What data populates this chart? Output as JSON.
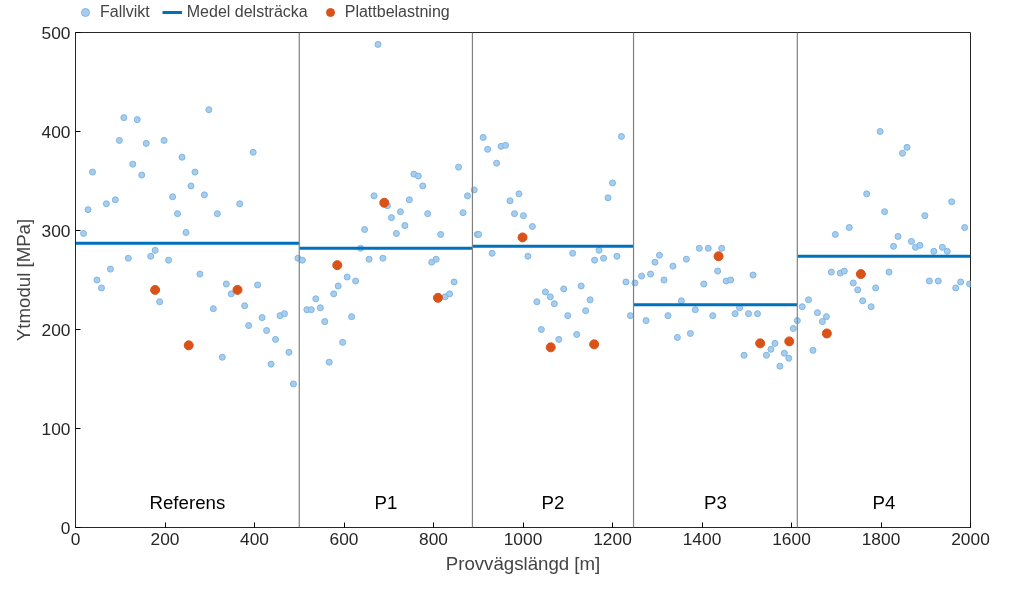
{
  "chart_data": {
    "type": "scatter",
    "xlabel": "Provvägslängd [m]",
    "ylabel": "Ytmodul [MPa]",
    "xlim": [
      0,
      2000
    ],
    "xticks": [
      0,
      200,
      400,
      600,
      800,
      1000,
      1200,
      1400,
      1600,
      1800,
      2000
    ],
    "ylim": [
      0,
      500
    ],
    "yticks": [
      0,
      100,
      200,
      300,
      400,
      500
    ],
    "legend": "top",
    "marker": "circle",
    "grid": false,
    "series": [
      {
        "name": "Fallvikt",
        "color": "#a6cdee",
        "x": [
          18,
          28,
          38,
          48,
          58,
          69,
          78,
          89,
          98,
          108,
          118,
          128,
          138,
          148,
          158,
          168,
          178,
          188,
          198,
          208,
          217,
          228,
          238,
          247,
          258,
          267,
          278,
          288,
          298,
          308,
          317,
          328,
          337,
          348,
          367,
          378,
          387,
          397,
          407,
          417,
          427,
          437,
          447,
          457,
          467,
          477,
          487,
          497,
          507,
          517,
          527,
          537,
          547,
          557,
          567,
          577,
          587,
          597,
          607,
          617,
          626,
          637,
          646,
          656,
          667,
          676,
          687,
          697,
          706,
          717,
          726,
          736,
          746,
          756,
          766,
          776,
          787,
          796,
          806,
          816,
          826,
          836,
          846,
          856,
          866,
          876,
          891,
          898,
          901,
          911,
          921,
          931,
          941,
          951,
          961,
          971,
          981,
          991,
          1001,
          1011,
          1021,
          1031,
          1041,
          1050,
          1061,
          1070,
          1080,
          1091,
          1100,
          1111,
          1120,
          1130,
          1140,
          1150,
          1160,
          1170,
          1180,
          1190,
          1200,
          1210,
          1220,
          1230,
          1240,
          1250,
          1265,
          1275,
          1285,
          1295,
          1305,
          1315,
          1324,
          1335,
          1345,
          1354,
          1365,
          1374,
          1385,
          1394,
          1404,
          1414,
          1424,
          1435,
          1444,
          1454,
          1464,
          1474,
          1484,
          1494,
          1504,
          1514,
          1524,
          1544,
          1554,
          1563,
          1574,
          1584,
          1594,
          1604,
          1613,
          1624,
          1638,
          1648,
          1658,
          1669,
          1678,
          1689,
          1698,
          1709,
          1718,
          1729,
          1738,
          1748,
          1759,
          1768,
          1778,
          1788,
          1798,
          1808,
          1818,
          1828,
          1838,
          1848,
          1858,
          1868,
          1877,
          1887,
          1898,
          1908,
          1918,
          1928,
          1937,
          1948,
          1958,
          1967,
          1978,
          1987,
          1998
        ],
        "values": [
          297,
          321,
          359,
          250,
          242,
          327,
          261,
          331,
          391,
          414,
          272,
          367,
          412,
          356,
          388,
          274,
          280,
          228,
          391,
          270,
          334,
          317,
          374,
          298,
          345,
          359,
          256,
          336,
          422,
          221,
          317,
          172,
          246,
          236,
          327,
          224,
          204,
          379,
          245,
          212,
          199,
          165,
          190,
          214,
          216,
          177,
          145,
          272,
          270,
          220,
          220,
          231,
          222,
          208,
          167,
          236,
          244,
          187,
          253,
          213,
          249,
          282,
          301,
          271,
          335,
          488,
          272,
          325,
          313,
          297,
          319,
          305,
          331,
          357,
          355,
          345,
          317,
          268,
          271,
          296,
          233,
          236,
          248,
          364,
          318,
          335,
          341,
          296,
          296,
          394,
          382,
          277,
          368,
          385,
          386,
          330,
          317,
          337,
          315,
          274,
          304,
          228,
          200,
          238,
          233,
          226,
          190,
          241,
          214,
          277,
          195,
          244,
          219,
          230,
          270,
          280,
          272,
          333,
          348,
          274,
          395,
          248,
          214,
          247,
          254,
          209,
          256,
          268,
          275,
          250,
          214,
          264,
          192,
          229,
          271,
          196,
          220,
          282,
          246,
          282,
          214,
          259,
          282,
          249,
          250,
          216,
          222,
          174,
          216,
          255,
          216,
          174,
          180,
          186,
          163,
          176,
          171,
          201,
          209,
          223,
          230,
          179,
          217,
          208,
          213,
          258,
          296,
          257,
          259,
          303,
          247,
          240,
          229,
          337,
          223,
          242,
          400,
          319,
          258,
          284,
          294,
          378,
          384,
          289,
          283,
          285,
          315,
          249,
          279,
          249,
          283,
          279,
          329,
          242,
          248,
          303,
          246
        ]
      },
      {
        "name": "Medel delsträcka",
        "type": "line",
        "marker": "none",
        "color": "#0072bd",
        "x": [
          0,
          500,
          null,
          500,
          887,
          null,
          887,
          1247,
          null,
          1247,
          1613,
          null,
          1613,
          2000
        ],
        "values": [
          287,
          287,
          null,
          282,
          282,
          null,
          284,
          284,
          null,
          225,
          225,
          null,
          274,
          274
        ]
      },
      {
        "name": "Plattbelastning",
        "color": "#d95319",
        "x": [
          178,
          253,
          362,
          585,
          690,
          810,
          999,
          1062,
          1159,
          1437,
          1530,
          1595,
          1679,
          1755
        ],
        "values": [
          240,
          184,
          240,
          265,
          328,
          232,
          293,
          182,
          185,
          274,
          186,
          188,
          196,
          256
        ]
      }
    ],
    "ref_lines": [
      {
        "axis": "x",
        "value": 500,
        "color": "#808080"
      },
      {
        "axis": "x",
        "value": 887,
        "color": "#808080"
      },
      {
        "axis": "x",
        "value": 1247,
        "color": "#808080"
      },
      {
        "axis": "x",
        "value": 1613,
        "color": "#808080"
      }
    ],
    "annotations": [
      "Referens",
      "P1",
      "P2",
      "P3",
      "P4"
    ]
  }
}
